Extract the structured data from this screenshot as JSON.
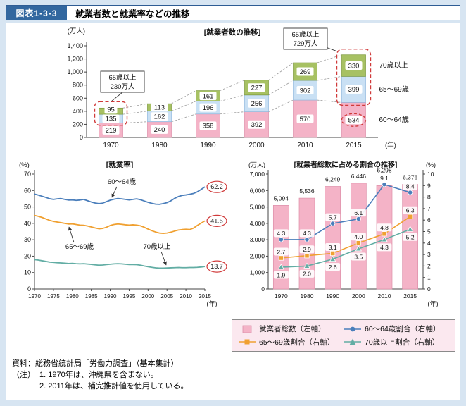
{
  "header": {
    "figure_label": "図表1-3-3",
    "title": "就業者数と就業率などの推移"
  },
  "colors": {
    "page_bg": "#d7e5f2",
    "header_blue": "#32679f",
    "legend_bg": "#fbe8ef",
    "pink": "#f4b3c7",
    "pink_border": "#dd8fa9",
    "lightblue": "#c9e0f4",
    "lightblue_border": "#8fb8dd",
    "green": "#a7c163",
    "green_border": "#7d9a3c",
    "line_blue": "#4a7ebb",
    "line_orange": "#f0a030",
    "line_teal": "#62ada4",
    "red": "#d03a3a",
    "axis": "#444444"
  },
  "chart_data": [
    {
      "type": "bar",
      "name": "employed-count",
      "title": "[就業者数の推移]",
      "unit_left": "(万人)",
      "x_suffix": "(年)",
      "categories": [
        "1970",
        "1980",
        "1990",
        "2000",
        "2010",
        "2015"
      ],
      "ylim": [
        0,
        1400
      ],
      "yticks": [
        "0",
        "200",
        "400",
        "600",
        "800",
        "1,000",
        "1,200",
        "1,400"
      ],
      "series": [
        {
          "name": "60～64歳",
          "values": [
            219,
            240,
            358,
            392,
            570,
            534
          ]
        },
        {
          "name": "65～69歳",
          "values": [
            135,
            162,
            196,
            256,
            302,
            399
          ]
        },
        {
          "name": "70歳以上",
          "values": [
            95,
            113,
            161,
            227,
            269,
            330
          ]
        }
      ],
      "annotations": [
        {
          "text": [
            "65歳以上",
            "230万人"
          ],
          "target": "1970"
        },
        {
          "text": [
            "65歳以上",
            "729万人"
          ],
          "target": "2015"
        }
      ]
    },
    {
      "type": "line",
      "name": "employment-rate",
      "title": "[就業率]",
      "unit_left": "(%)",
      "x_suffix": "(年)",
      "x_start": 1970,
      "x_end": 2015,
      "xticks": [
        "1970",
        "1975",
        "1980",
        "1985",
        "1990",
        "1995",
        "2000",
        "2005",
        "2010",
        "2015"
      ],
      "ylim": [
        0,
        70
      ],
      "yticks": [
        "0",
        "10",
        "20",
        "30",
        "40",
        "50",
        "60",
        "70"
      ],
      "series": [
        {
          "name": "60～64歳",
          "end_label": "62.2",
          "values": [
            57.8,
            57.2,
            56.5,
            55.8,
            55.0,
            54.6,
            54.9,
            55.1,
            54.6,
            54.2,
            54.3,
            54.0,
            54.2,
            54.6,
            53.8,
            53.0,
            52.4,
            52.0,
            52.3,
            53.2,
            54.1,
            54.7,
            55.1,
            54.9,
            54.6,
            54.3,
            54.6,
            54.9,
            54.4,
            53.6,
            52.8,
            52.2,
            51.7,
            51.6,
            52.0,
            52.6,
            53.7,
            55.2,
            56.3,
            57.0,
            57.3,
            57.7,
            58.2,
            59.2,
            60.6,
            62.2
          ]
        },
        {
          "name": "65～69歳",
          "end_label": "41.5",
          "values": [
            44.8,
            44.3,
            43.6,
            42.7,
            41.8,
            41.2,
            40.8,
            40.4,
            40.0,
            39.6,
            39.7,
            39.3,
            38.9,
            38.8,
            38.4,
            37.8,
            37.2,
            36.7,
            36.9,
            37.6,
            38.7,
            39.3,
            39.6,
            39.4,
            39.1,
            38.9,
            39.1,
            38.9,
            38.5,
            37.6,
            36.5,
            35.5,
            34.7,
            34.1,
            33.9,
            34.1,
            34.6,
            35.3,
            35.9,
            36.2,
            36.4,
            36.2,
            37.1,
            38.7,
            40.1,
            41.5
          ]
        },
        {
          "name": "70歳以上",
          "end_label": "13.7",
          "values": [
            17.9,
            17.6,
            17.2,
            16.8,
            16.4,
            16.2,
            16.0,
            15.9,
            15.7,
            15.5,
            15.6,
            15.4,
            15.3,
            15.4,
            15.2,
            15.0,
            14.7,
            14.5,
            14.6,
            14.9,
            15.1,
            15.3,
            15.4,
            15.3,
            15.1,
            14.9,
            14.9,
            14.8,
            14.5,
            14.0,
            13.6,
            13.2,
            12.9,
            12.7,
            12.7,
            12.8,
            12.9,
            13.0,
            13.1,
            13.0,
            13.0,
            13.1,
            13.1,
            13.2,
            13.4,
            13.7
          ]
        }
      ]
    },
    {
      "type": "combo",
      "name": "share-of-total",
      "title": "[就業者総数に占める割合の推移]",
      "unit_left": "(万人)",
      "unit_right": "(%)",
      "x_suffix": "(年)",
      "categories": [
        "1970",
        "1980",
        "1990",
        "2000",
        "2010",
        "2015"
      ],
      "ylim_left": [
        0,
        7000
      ],
      "ylim_right": [
        0,
        10
      ],
      "yticks_left": [
        "0",
        "1,000",
        "2,000",
        "3,000",
        "4,000",
        "5,000",
        "6,000",
        "7,000"
      ],
      "yticks_right": [
        "0",
        "1",
        "2",
        "3",
        "4",
        "5",
        "6",
        "7",
        "8",
        "9",
        "10"
      ],
      "bars": {
        "name": "就業者総数",
        "values": [
          5094,
          5536,
          6249,
          6446,
          6298,
          6376
        ],
        "labels": [
          "5,094",
          "5,536",
          "6,249",
          "6,446",
          "6,298",
          "6,376"
        ]
      },
      "lines": [
        {
          "name": "60～64歳割合",
          "marker": "circle",
          "values": [
            4.3,
            4.3,
            5.7,
            6.1,
            9.1,
            8.4
          ]
        },
        {
          "name": "65～69歳割合",
          "marker": "square",
          "values": [
            2.7,
            2.9,
            3.1,
            4.0,
            4.8,
            6.3
          ]
        },
        {
          "name": "70歳以上割合",
          "marker": "triangle",
          "values": [
            1.9,
            2.0,
            2.6,
            3.5,
            4.3,
            5.2
          ]
        }
      ]
    }
  ],
  "legend": {
    "items": [
      {
        "label": "就業者総数（左軸）",
        "marker": "bar",
        "color_key": "pink"
      },
      {
        "label": "60～64歳割合（右軸）",
        "marker": "circle",
        "color_key": "line_blue"
      },
      {
        "label": "65～69歳割合（右軸）",
        "marker": "square",
        "color_key": "line_orange"
      },
      {
        "label": "70歳以上割合（右軸）",
        "marker": "triangle",
        "color_key": "line_teal"
      }
    ]
  },
  "footer": {
    "source": "資料：総務省統計局「労働力調査」（基本集計）",
    "note_label": "（注）",
    "notes": [
      "1. 1970年は、沖縄県を含まない。",
      "2. 2011年は、補完推計値を使用している。"
    ]
  }
}
